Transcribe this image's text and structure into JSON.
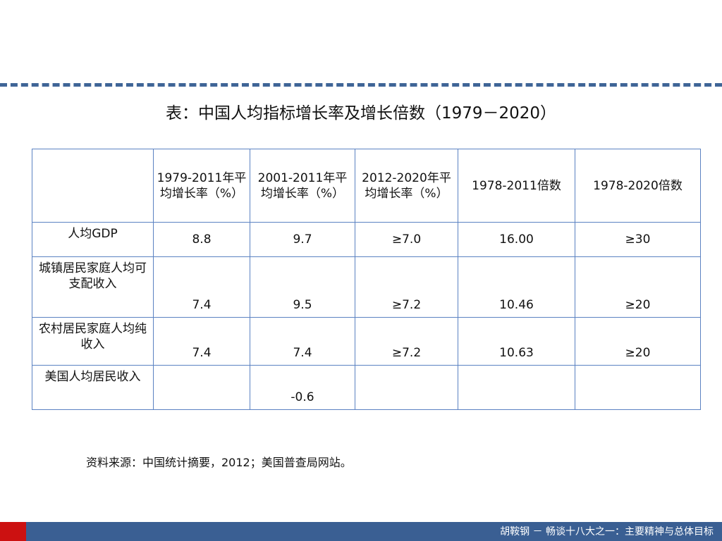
{
  "title": "表：中国人均指标增长率及增长倍数（1979－2020）",
  "table": {
    "headers": [
      "",
      "1979-2011年平均增长率（%）",
      "2001-2011年平均增长率（%）",
      "2012-2020年平均增长率（%）",
      "1978-2011倍数",
      "1978-2020倍数"
    ],
    "rows": [
      {
        "label": "人均GDP",
        "values": [
          "8.8",
          "9.7",
          "≥7.0",
          "16.00",
          "≥30"
        ]
      },
      {
        "label": "城镇居民家庭人均可支配收入",
        "values": [
          "7.4",
          "9.5",
          "≥7.2",
          "10.46",
          "≥20"
        ]
      },
      {
        "label": "农村居民家庭人均纯收入",
        "values": [
          "7.4",
          "7.4",
          "≥7.2",
          "10.63",
          "≥20"
        ]
      },
      {
        "label": "美国人均居民收入",
        "values": [
          "",
          "-0.6",
          "",
          "",
          ""
        ]
      }
    ]
  },
  "source": "资料来源：中国统计摘要，2012；美国普查局网站。",
  "footer": "胡鞍钢 － 畅谈十八大之一：主要精神与总体目标",
  "colors": {
    "accent": "#3a5f93",
    "border": "#5b82c2",
    "footer_mark": "#cc1111"
  }
}
